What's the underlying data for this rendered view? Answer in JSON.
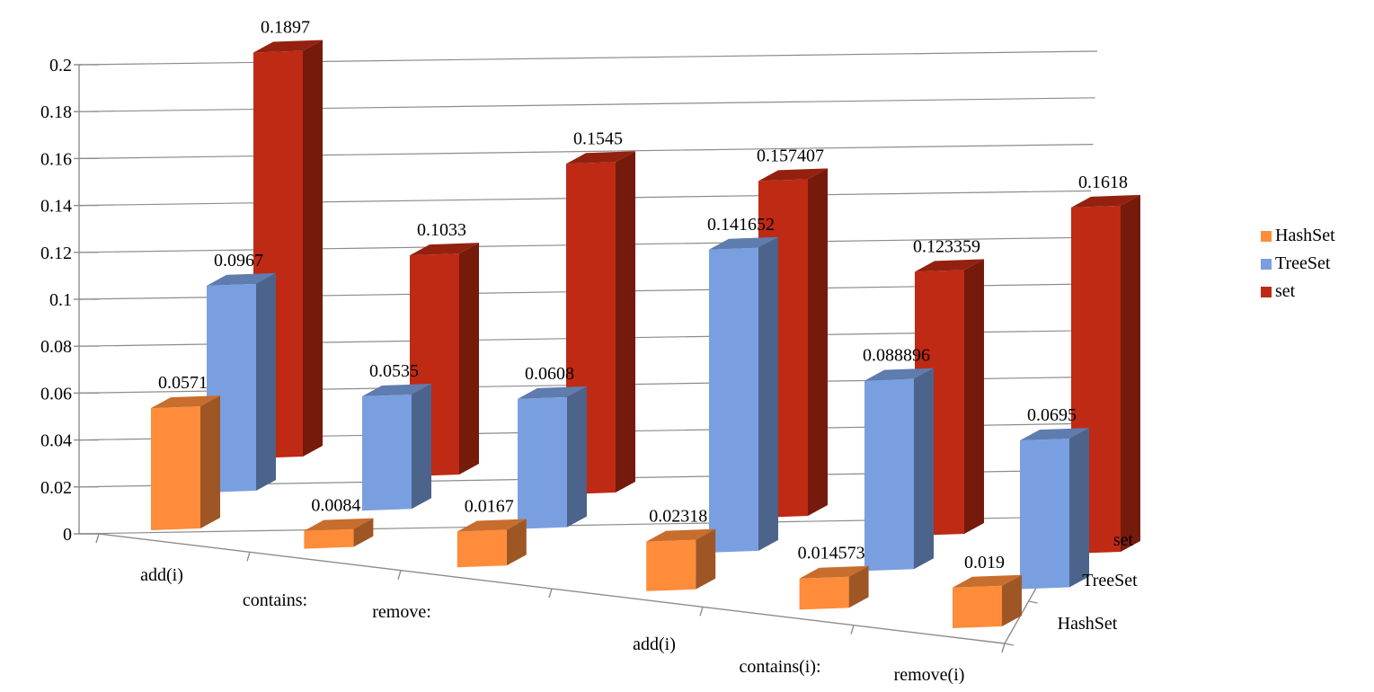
{
  "chart_data": {
    "type": "bar",
    "subtype": "3d-column",
    "title": "",
    "xlabel": "",
    "ylabel": "",
    "ylim": [
      0,
      0.2
    ],
    "yticks": [
      "0",
      "0.02",
      "0.04",
      "0.06",
      "0.08",
      "0.1",
      "0.12",
      "0.14",
      "0.16",
      "0.18",
      "0.2"
    ],
    "categories": [
      "add(i)",
      "contains:",
      "remove:",
      "add(i)",
      "contains(i):",
      "remove(i)"
    ],
    "depth_categories": [
      "set",
      "TreeSet",
      "HashSet"
    ],
    "grid": true,
    "legend_position": "right",
    "series": [
      {
        "name": "HashSet",
        "color": "#ff8c3a",
        "values": [
          0.0571,
          0.0084,
          0.0167,
          0.02318,
          0.014573,
          0.019
        ],
        "labels": [
          "0.0571",
          "0.0084",
          "0.0167",
          "0.02318",
          "0.014573",
          "0.019"
        ]
      },
      {
        "name": "TreeSet",
        "color": "#7a9fe0",
        "values": [
          0.0967,
          0.0535,
          0.0608,
          0.141652,
          0.088896,
          0.0695
        ],
        "labels": [
          "0.0967",
          "0.0535",
          "0.0608",
          "0.141652",
          "0.088896",
          "0.0695"
        ]
      },
      {
        "name": "set",
        "color": "#be2a14",
        "values": [
          0.1897,
          0.1033,
          0.1545,
          0.157407,
          0.123359,
          0.1618
        ],
        "labels": [
          "0.1897",
          "0.1033",
          "0.1545",
          "0.157407",
          "0.123359",
          "0.1618"
        ]
      }
    ]
  }
}
